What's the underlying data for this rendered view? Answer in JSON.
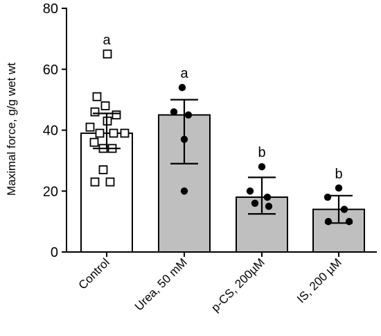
{
  "chart_data": {
    "type": "bar",
    "ylabel": "Maximal  force, g/g wet wt",
    "ylim": [
      0,
      80
    ],
    "yticks": [
      0,
      20,
      40,
      60,
      80
    ],
    "grid": false,
    "categories": [
      "Control",
      "Urea, 50 mM",
      "p-CS, 200µM",
      "IS, 200 µM"
    ],
    "means": [
      39,
      45,
      18,
      14
    ],
    "error_low": [
      34,
      29,
      12.5,
      9.5
    ],
    "error_high": [
      45.5,
      50,
      24.5,
      18.5
    ],
    "significance_letters": [
      "a",
      "a",
      "b",
      "b"
    ],
    "bar_fill": [
      "#ffffff",
      "#bfbfbf",
      "#bfbfbf",
      "#bfbfbf"
    ],
    "point_marker": [
      "open-square",
      "filled-circle",
      "filled-circle",
      "filled-circle"
    ],
    "points": [
      [
        65,
        51,
        48,
        46,
        45,
        43,
        41,
        39,
        39,
        39,
        36,
        34,
        34,
        27,
        23,
        23
      ],
      [
        54,
        46,
        45,
        37,
        20
      ],
      [
        28,
        20,
        18,
        16,
        15
      ],
      [
        21,
        18,
        14,
        10,
        10
      ]
    ]
  }
}
